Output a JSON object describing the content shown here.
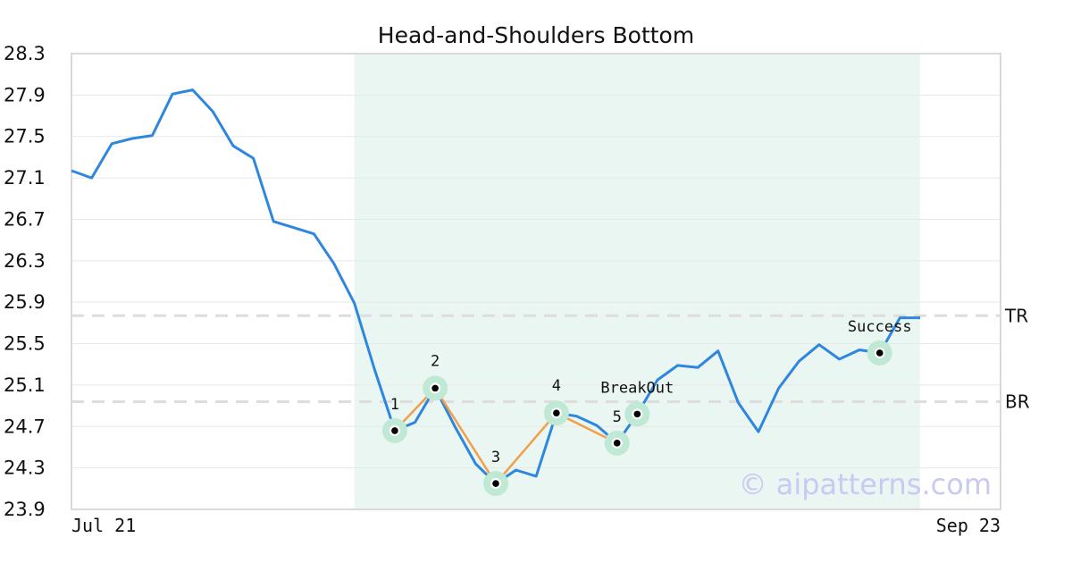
{
  "chart_data": {
    "type": "line",
    "title": "Head-and-Shoulders Bottom",
    "xlabel": "",
    "ylabel": "",
    "ylim": [
      23.9,
      28.3
    ],
    "yticks": [
      "23.9",
      "24.3",
      "24.7",
      "25.1",
      "25.5",
      "25.9",
      "26.3",
      "26.7",
      "27.1",
      "27.5",
      "27.9",
      "28.3"
    ],
    "xtick_labels": [
      "Jul 21",
      "Sep 23"
    ],
    "grid": true,
    "colors": {
      "price_line": "#2e86de",
      "pattern_line": "#f0a04b",
      "highlight_band": "#eaf6f1",
      "marker_ring": "#bfe9d5",
      "reference_line": "#dddddd"
    },
    "series": [
      {
        "values": [
          27.17,
          27.1,
          27.43,
          27.48,
          27.51,
          27.91,
          27.95,
          27.74,
          27.41,
          27.29,
          26.68,
          26.62,
          26.56,
          26.27,
          25.89,
          25.25,
          24.66,
          24.74,
          25.07,
          24.69,
          24.34,
          24.15,
          24.28,
          24.22,
          24.83,
          24.8,
          24.71,
          24.54,
          24.82,
          25.15,
          25.29,
          25.27,
          25.43,
          24.93,
          24.65,
          25.07,
          25.33,
          25.49,
          25.35,
          25.44,
          25.41,
          25.75,
          25.75
        ]
      }
    ],
    "shaded_region": {
      "start_index": 14,
      "end_index": 42
    },
    "pattern_points": [
      {
        "label": "1",
        "index": 16,
        "value": 24.66
      },
      {
        "label": "2",
        "index": 18,
        "value": 25.07
      },
      {
        "label": "3",
        "index": 21,
        "value": 24.15
      },
      {
        "label": "4",
        "index": 24,
        "value": 24.83
      },
      {
        "label": "5",
        "index": 27,
        "value": 24.54
      }
    ],
    "markers": [
      {
        "label": "BreakOut",
        "index": 28,
        "value": 24.82
      },
      {
        "label": "Success",
        "index": 40,
        "value": 25.41
      }
    ],
    "reference_lines": [
      {
        "label": "TR",
        "value": 25.77
      },
      {
        "label": "BR",
        "value": 24.94
      }
    ],
    "watermark": "© aipatterns.com"
  }
}
